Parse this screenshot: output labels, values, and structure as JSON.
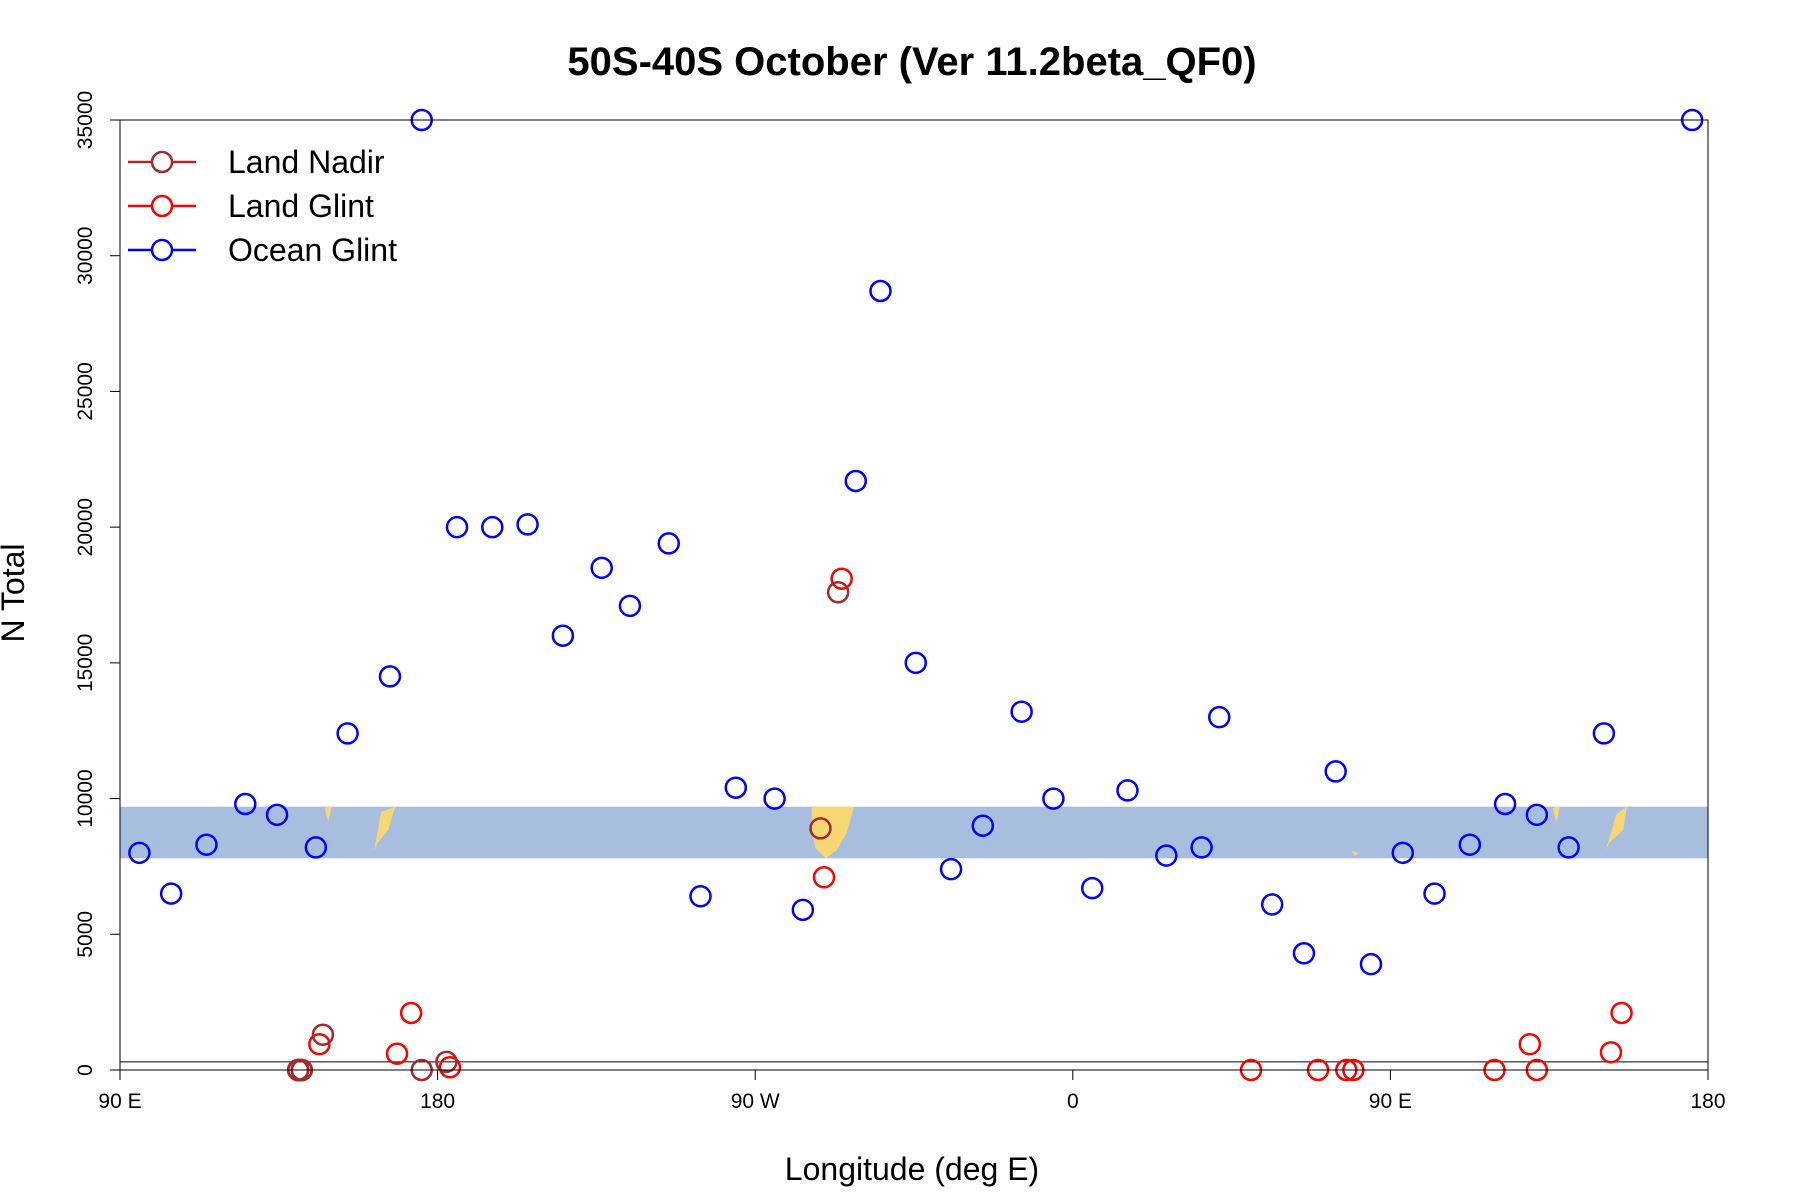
{
  "chart_data": {
    "type": "scatter",
    "title": "50S-40S October (Ver 11.2beta_QF0)",
    "xlabel": "Longitude (deg E)",
    "ylabel": "N Total",
    "xlim": [
      90,
      540
    ],
    "ylim": [
      0,
      35000
    ],
    "x_ticks": [
      {
        "value": 90,
        "label": "90 E"
      },
      {
        "value": 180,
        "label": "180"
      },
      {
        "value": 270,
        "label": "90 W"
      },
      {
        "value": 360,
        "label": "0"
      },
      {
        "value": 450,
        "label": "90 E"
      },
      {
        "value": 540,
        "label": "180"
      }
    ],
    "y_ticks": [
      0,
      5000,
      10000,
      15000,
      20000,
      25000,
      30000,
      35000
    ],
    "legend_position": "top-left",
    "colors": {
      "land_nadir": "#a52a2a",
      "land_glint": "#ff0000",
      "ocean_glint": "#0000ff",
      "map_band": "#a7bedf",
      "land_fill": "#f7d774"
    },
    "map_band": {
      "y_from": 7800,
      "y_to": 9700
    },
    "reference_lines": [
      0,
      300
    ],
    "series": [
      {
        "name": "Land Nadir",
        "key": "land_nadir",
        "x": [
          147.5,
          175.5,
          182.5,
          293.5,
          288.5,
          140.5,
          141.5,
          140.5,
          141.5,
          140.5,
          141.5,
          140.5,
          141.5,
          140.5
        ],
        "y": [
          1300,
          0,
          300,
          17600,
          8900,
          0,
          0,
          0,
          0,
          0,
          0,
          0,
          0,
          0
        ]
      },
      {
        "name": "Land Glint",
        "key": "land_glint",
        "x": [
          146.5,
          168.5,
          172.5,
          183.5,
          289.5,
          294.5,
          410.5,
          429.5,
          437.5,
          439.5,
          489.5,
          512.5,
          515.5,
          479.5,
          491.5
        ],
        "y": [
          950,
          600,
          2100,
          100,
          7100,
          18100,
          0,
          0,
          0,
          0,
          950,
          650,
          2100,
          0,
          0
        ]
      },
      {
        "name": "Ocean Glint",
        "key": "ocean_glint",
        "x": [
          95.5,
          104.5,
          114.5,
          125.5,
          134.5,
          145.5,
          154.5,
          166.5,
          175.5,
          185.5,
          195.5,
          205.5,
          215.5,
          226.5,
          234.5,
          245.5,
          254.5,
          264.5,
          275.5,
          283.5,
          298.5,
          305.5,
          315.5,
          325.5,
          334.5,
          345.5,
          354.5,
          365.5,
          375.5,
          386.5,
          396.5,
          401.5,
          416.5,
          425.5,
          434.5,
          444.5,
          453.5,
          462.5,
          472.5,
          482.5,
          491.5,
          500.5,
          510.5,
          535.5
        ],
        "y": [
          8000,
          6500,
          8300,
          9800,
          9400,
          8200,
          12400,
          14500,
          35000,
          20000,
          20000,
          20100,
          16000,
          18500,
          17100,
          19400,
          6400,
          10400,
          10000,
          5900,
          21700,
          28700,
          15000,
          7400,
          9000,
          13200,
          10000,
          6700,
          10300,
          7900,
          8200,
          13000,
          6100,
          4300,
          11000,
          3900,
          8000,
          6500,
          8300,
          9800,
          9400,
          8200,
          12400,
          35000
        ]
      }
    ]
  }
}
